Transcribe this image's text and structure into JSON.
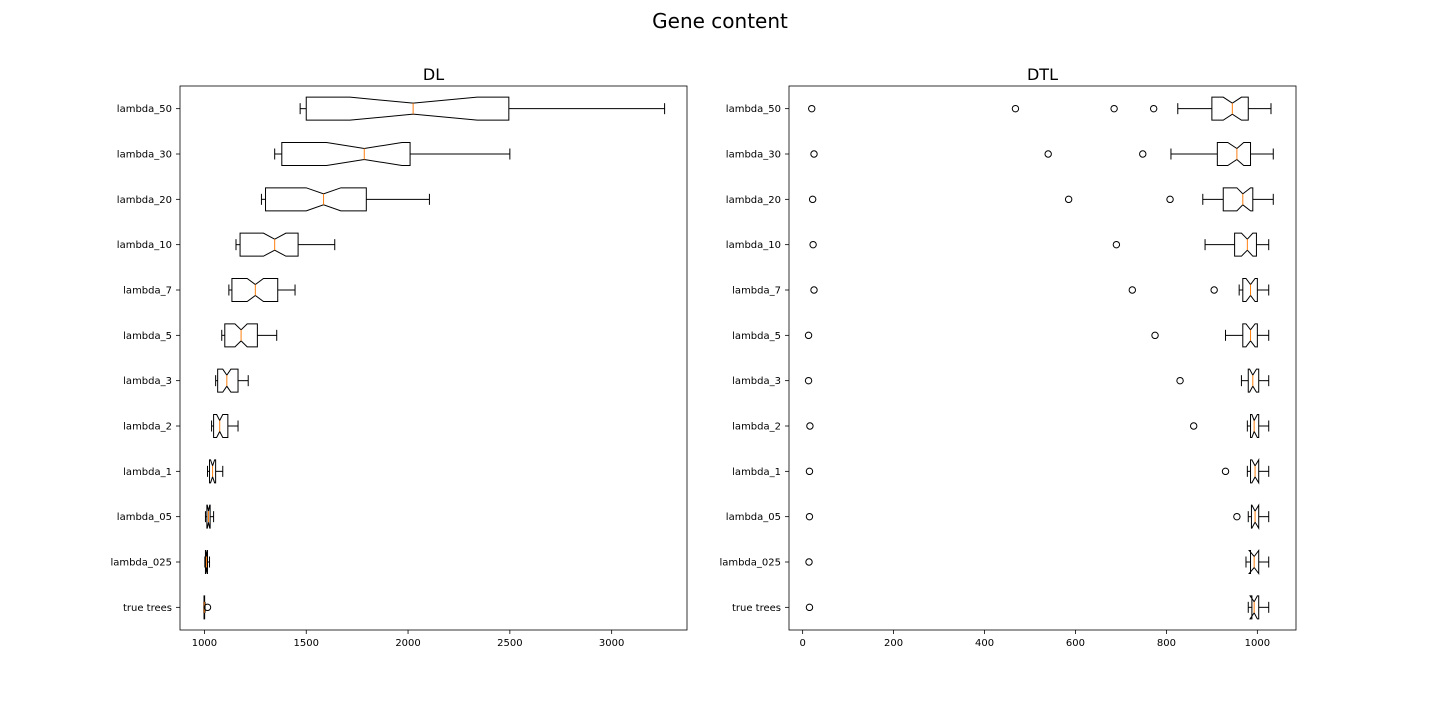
{
  "figure": {
    "title": "Gene content"
  },
  "chart_data": [
    {
      "type": "boxplot",
      "orientation": "horizontal",
      "notched": true,
      "title": "DL",
      "xlabel": "",
      "ylabel": "",
      "xlim": [
        880,
        3370
      ],
      "xticks": [
        1000,
        1500,
        2000,
        2500,
        3000
      ],
      "categories": [
        "true trees",
        "lambda_025",
        "lambda_05",
        "lambda_1",
        "lambda_2",
        "lambda_3",
        "lambda_5",
        "lambda_7",
        "lambda_10",
        "lambda_20",
        "lambda_30",
        "lambda_50"
      ],
      "boxes": [
        {
          "label": "true trees",
          "whislo": 997,
          "q1": 998,
          "med": 999,
          "q3": 1001,
          "whishi": 1003,
          "notch": [
            998.5,
            999.5
          ],
          "fliers": [
            1015
          ]
        },
        {
          "label": "lambda_025",
          "whislo": 1002,
          "q1": 1005,
          "med": 1010,
          "q3": 1015,
          "whishi": 1025,
          "notch": [
            1006,
            1014
          ],
          "fliers": []
        },
        {
          "label": "lambda_05",
          "whislo": 1005,
          "q1": 1012,
          "med": 1020,
          "q3": 1028,
          "whishi": 1045,
          "notch": [
            1014,
            1026
          ],
          "fliers": []
        },
        {
          "label": "lambda_1",
          "whislo": 1015,
          "q1": 1025,
          "med": 1040,
          "q3": 1055,
          "whishi": 1090,
          "notch": [
            1030,
            1050
          ],
          "fliers": []
        },
        {
          "label": "lambda_2",
          "whislo": 1035,
          "q1": 1045,
          "med": 1075,
          "q3": 1115,
          "whishi": 1165,
          "notch": [
            1060,
            1090
          ],
          "fliers": []
        },
        {
          "label": "lambda_3",
          "whislo": 1055,
          "q1": 1065,
          "med": 1110,
          "q3": 1165,
          "whishi": 1215,
          "notch": [
            1090,
            1130
          ],
          "fliers": []
        },
        {
          "label": "lambda_5",
          "whislo": 1085,
          "q1": 1100,
          "med": 1180,
          "q3": 1260,
          "whishi": 1355,
          "notch": [
            1150,
            1210
          ],
          "fliers": []
        },
        {
          "label": "lambda_7",
          "whislo": 1120,
          "q1": 1135,
          "med": 1250,
          "q3": 1360,
          "whishi": 1445,
          "notch": [
            1210,
            1290
          ],
          "fliers": []
        },
        {
          "label": "lambda_10",
          "whislo": 1155,
          "q1": 1175,
          "med": 1345,
          "q3": 1460,
          "whishi": 1640,
          "notch": [
            1290,
            1400
          ],
          "fliers": []
        },
        {
          "label": "lambda_20",
          "whislo": 1280,
          "q1": 1300,
          "med": 1585,
          "q3": 1795,
          "whishi": 2105,
          "notch": [
            1500,
            1670
          ],
          "fliers": []
        },
        {
          "label": "lambda_30",
          "whislo": 1345,
          "q1": 1380,
          "med": 1785,
          "q3": 2010,
          "whishi": 2500,
          "notch": [
            1600,
            1970
          ],
          "fliers": []
        },
        {
          "label": "lambda_50",
          "whislo": 1470,
          "q1": 1500,
          "med": 2025,
          "q3": 2495,
          "whishi": 3260,
          "notch": [
            1715,
            2340
          ],
          "fliers": []
        }
      ]
    },
    {
      "type": "boxplot",
      "orientation": "horizontal",
      "notched": true,
      "title": "DTL",
      "xlabel": "",
      "ylabel": "",
      "xlim": [
        -30,
        1085
      ],
      "xticks": [
        0,
        200,
        400,
        600,
        800,
        1000
      ],
      "categories": [
        "true trees",
        "lambda_025",
        "lambda_05",
        "lambda_1",
        "lambda_2",
        "lambda_3",
        "lambda_5",
        "lambda_7",
        "lambda_10",
        "lambda_20",
        "lambda_30",
        "lambda_50"
      ],
      "boxes": [
        {
          "label": "true trees",
          "whislo": 980,
          "q1": 988,
          "med": 993,
          "q3": 1003,
          "whishi": 1025,
          "notch": [
            984,
            1000
          ],
          "fliers": [
            15
          ]
        },
        {
          "label": "lambda_025",
          "whislo": 975,
          "q1": 985,
          "med": 993,
          "q3": 1003,
          "whishi": 1025,
          "notch": [
            982,
            1003
          ],
          "fliers": [
            14
          ]
        },
        {
          "label": "lambda_05",
          "whislo": 980,
          "q1": 987,
          "med": 995,
          "q3": 1003,
          "whishi": 1025,
          "notch": [
            988,
            1003
          ],
          "fliers": [
            15,
            955
          ]
        },
        {
          "label": "lambda_1",
          "whislo": 978,
          "q1": 985,
          "med": 995,
          "q3": 1003,
          "whishi": 1025,
          "notch": [
            988,
            1003
          ],
          "fliers": [
            15,
            930
          ]
        },
        {
          "label": "lambda_2",
          "whislo": 978,
          "q1": 985,
          "med": 993,
          "q3": 1003,
          "whishi": 1025,
          "notch": [
            988,
            1000
          ],
          "fliers": [
            16,
            860
          ]
        },
        {
          "label": "lambda_3",
          "whislo": 965,
          "q1": 980,
          "med": 990,
          "q3": 1003,
          "whishi": 1025,
          "notch": [
            983,
            998
          ],
          "fliers": [
            13,
            830
          ]
        },
        {
          "label": "lambda_5",
          "whislo": 930,
          "q1": 968,
          "med": 985,
          "q3": 1000,
          "whishi": 1025,
          "notch": [
            975,
            995
          ],
          "fliers": [
            13,
            775
          ]
        },
        {
          "label": "lambda_7",
          "whislo": 960,
          "q1": 968,
          "med": 985,
          "q3": 1000,
          "whishi": 1025,
          "notch": [
            975,
            995
          ],
          "fliers": [
            25,
            725,
            905
          ]
        },
        {
          "label": "lambda_10",
          "whislo": 885,
          "q1": 950,
          "med": 978,
          "q3": 998,
          "whishi": 1025,
          "notch": [
            965,
            990
          ],
          "fliers": [
            23,
            690
          ]
        },
        {
          "label": "lambda_20",
          "whislo": 880,
          "q1": 925,
          "med": 968,
          "q3": 990,
          "whishi": 1035,
          "notch": [
            955,
            985
          ],
          "fliers": [
            22,
            585,
            808
          ]
        },
        {
          "label": "lambda_30",
          "whislo": 810,
          "q1": 912,
          "med": 955,
          "q3": 985,
          "whishi": 1035,
          "notch": [
            935,
            970
          ],
          "fliers": [
            25,
            540,
            748
          ]
        },
        {
          "label": "lambda_50",
          "whislo": 825,
          "q1": 900,
          "med": 945,
          "q3": 980,
          "whishi": 1030,
          "notch": [
            925,
            965
          ],
          "fliers": [
            20,
            468,
            685,
            772
          ]
        }
      ]
    }
  ]
}
